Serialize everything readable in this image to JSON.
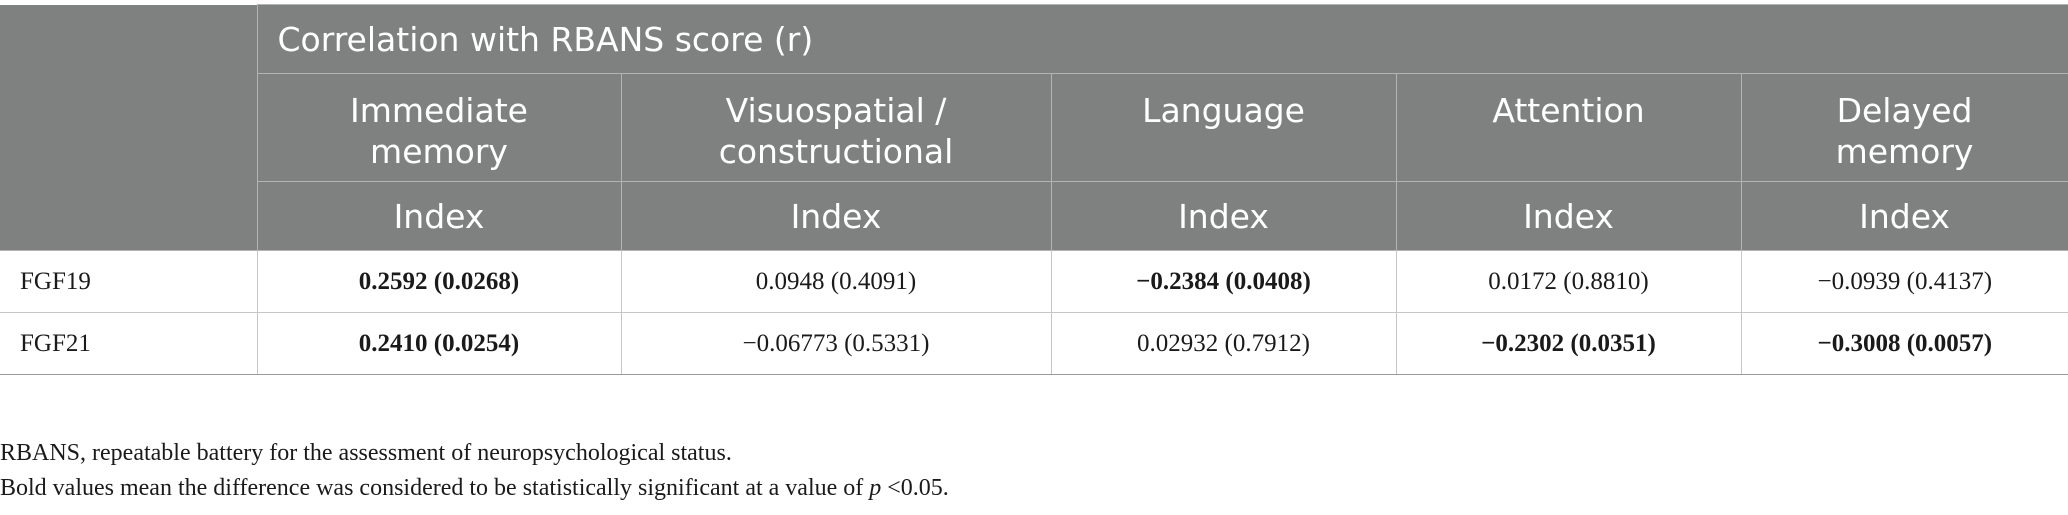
{
  "table": {
    "group_header": "Correlation with RBANS score (r)",
    "columns": [
      {
        "domain": "Immediate memory",
        "domain_lines": [
          "Immediate",
          "memory"
        ],
        "sub": "Index"
      },
      {
        "domain": "Visuospatial / constructional",
        "domain_lines": [
          "Visuospatial /",
          "constructional"
        ],
        "sub": "Index"
      },
      {
        "domain": "Language",
        "domain_lines": [
          "Language"
        ],
        "sub": "Index"
      },
      {
        "domain": "Attention",
        "domain_lines": [
          "Attention"
        ],
        "sub": "Index"
      },
      {
        "domain": "Delayed memory",
        "domain_lines": [
          "Delayed",
          "memory"
        ],
        "sub": "Index"
      }
    ],
    "rows": [
      {
        "label": "FGF19",
        "cells": [
          {
            "value": "0.2592 (0.0268)",
            "bold": true
          },
          {
            "value": "0.0948 (0.4091)",
            "bold": false
          },
          {
            "value": "−0.2384 (0.0408)",
            "bold": true
          },
          {
            "value": "0.0172 (0.8810)",
            "bold": false
          },
          {
            "value": "−0.0939 (0.4137)",
            "bold": false
          }
        ]
      },
      {
        "label": "FGF21",
        "cells": [
          {
            "value": "0.2410 (0.0254)",
            "bold": true
          },
          {
            "value": "−0.06773 (0.5331)",
            "bold": false
          },
          {
            "value": "0.02932 (0.7912)",
            "bold": false
          },
          {
            "value": "−0.2302 (0.0351)",
            "bold": true
          },
          {
            "value": "−0.3008 (0.0057)",
            "bold": true
          }
        ]
      }
    ]
  },
  "notes": {
    "abbreviation": "RBANS, repeatable battery for the assessment of neuropsychological status.",
    "significance_prefix": "Bold values mean the difference was considered to be statistically significant at a value of ",
    "significance_var": "p",
    "significance_suffix": " <0.05."
  }
}
